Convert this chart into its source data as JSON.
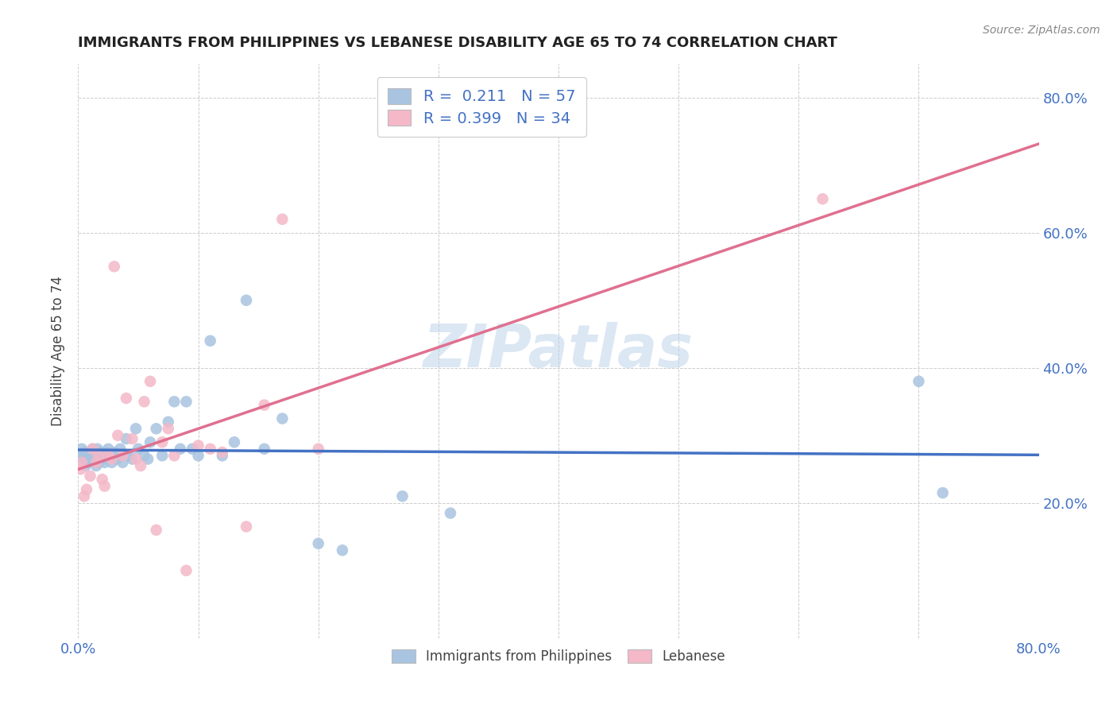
{
  "title": "IMMIGRANTS FROM PHILIPPINES VS LEBANESE DISABILITY AGE 65 TO 74 CORRELATION CHART",
  "source": "Source: ZipAtlas.com",
  "ylabel": "Disability Age 65 to 74",
  "xlim": [
    0.0,
    0.8
  ],
  "ylim": [
    0.0,
    0.85
  ],
  "philippines_R": 0.211,
  "philippines_N": 57,
  "lebanese_R": 0.399,
  "lebanese_N": 34,
  "philippines_color": "#a8c4e0",
  "lebanese_color": "#f4b8c8",
  "philippines_line_color": "#4472c4",
  "lebanese_line_color": "#e07090",
  "watermark": "ZIPatlas",
  "philippines_x": [
    0.002,
    0.003,
    0.004,
    0.005,
    0.006,
    0.007,
    0.008,
    0.009,
    0.01,
    0.012,
    0.013,
    0.014,
    0.015,
    0.016,
    0.017,
    0.018,
    0.019,
    0.02,
    0.022,
    0.023,
    0.024,
    0.025,
    0.026,
    0.028,
    0.03,
    0.032,
    0.033,
    0.035,
    0.037,
    0.04,
    0.042,
    0.045,
    0.048,
    0.05,
    0.055,
    0.058,
    0.06,
    0.065,
    0.07,
    0.075,
    0.08,
    0.085,
    0.09,
    0.095,
    0.1,
    0.11,
    0.12,
    0.13,
    0.14,
    0.155,
    0.17,
    0.2,
    0.22,
    0.27,
    0.31,
    0.7,
    0.72
  ],
  "philippines_y": [
    0.27,
    0.28,
    0.265,
    0.275,
    0.255,
    0.27,
    0.26,
    0.275,
    0.265,
    0.28,
    0.265,
    0.27,
    0.255,
    0.28,
    0.26,
    0.265,
    0.275,
    0.27,
    0.26,
    0.275,
    0.265,
    0.28,
    0.27,
    0.26,
    0.275,
    0.265,
    0.27,
    0.28,
    0.26,
    0.295,
    0.27,
    0.265,
    0.31,
    0.28,
    0.27,
    0.265,
    0.29,
    0.31,
    0.27,
    0.32,
    0.35,
    0.28,
    0.35,
    0.28,
    0.27,
    0.44,
    0.27,
    0.29,
    0.5,
    0.28,
    0.325,
    0.14,
    0.13,
    0.21,
    0.185,
    0.38,
    0.215
  ],
  "lebanese_x": [
    0.002,
    0.003,
    0.005,
    0.007,
    0.01,
    0.012,
    0.015,
    0.017,
    0.02,
    0.022,
    0.025,
    0.028,
    0.03,
    0.033,
    0.037,
    0.04,
    0.045,
    0.048,
    0.052,
    0.055,
    0.06,
    0.065,
    0.07,
    0.075,
    0.08,
    0.09,
    0.1,
    0.11,
    0.12,
    0.14,
    0.155,
    0.17,
    0.2,
    0.62
  ],
  "lebanese_y": [
    0.25,
    0.26,
    0.21,
    0.22,
    0.24,
    0.28,
    0.26,
    0.27,
    0.235,
    0.225,
    0.27,
    0.265,
    0.55,
    0.3,
    0.27,
    0.355,
    0.295,
    0.265,
    0.255,
    0.35,
    0.38,
    0.16,
    0.29,
    0.31,
    0.27,
    0.1,
    0.285,
    0.28,
    0.275,
    0.165,
    0.345,
    0.62,
    0.28,
    0.65
  ]
}
